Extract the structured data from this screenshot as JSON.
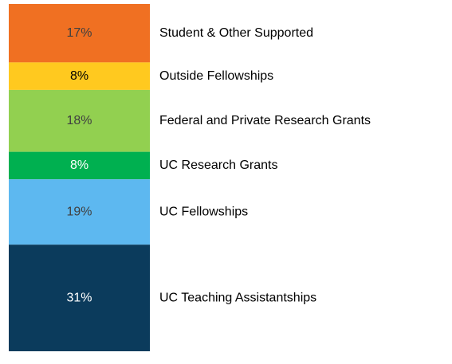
{
  "chart_data": {
    "type": "stacked_bar",
    "series": [
      {
        "name": "Student & Other Supported",
        "color": "#f07022",
        "values": [
          17
        ],
        "value_labels": [
          "17%"
        ]
      },
      {
        "name": "Outside Fellowships",
        "color": "#ffc91f",
        "values": [
          8
        ],
        "value_labels": [
          "8%"
        ]
      },
      {
        "name": "Federal and Private Research Grants",
        "color": "#92d050",
        "values": [
          18
        ],
        "value_labels": [
          "18%"
        ]
      },
      {
        "name": "UC Research Grants",
        "color": "#00b050",
        "values": [
          8
        ],
        "value_labels": [
          "8%"
        ]
      },
      {
        "name": "UC Fellowships",
        "color": "#5db8f0",
        "values": [
          19
        ],
        "value_labels": [
          "19%"
        ]
      },
      {
        "name": "UC Teaching Assistantships",
        "color": "#0b3b5c",
        "values": [
          31
        ],
        "value_labels": [
          "31%"
        ]
      }
    ]
  }
}
